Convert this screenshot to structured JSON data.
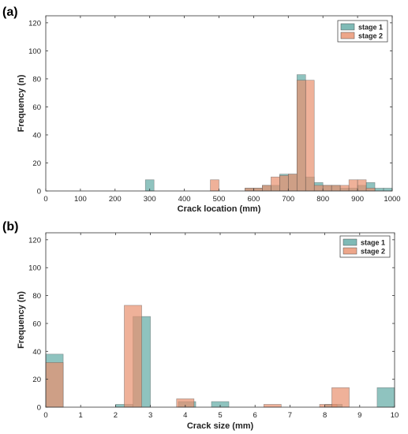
{
  "colors": {
    "stage1": "#5fa9a4",
    "stage2": "#e8906d",
    "axis": "#333333"
  },
  "chart_data": [
    {
      "panel_label": "(a)",
      "type": "bar",
      "xlabel": "Crack location (mm)",
      "ylabel": "Frequency (n)",
      "xlim": [
        0,
        1000
      ],
      "ylim": [
        0,
        125
      ],
      "xticks": [
        0,
        100,
        200,
        300,
        400,
        500,
        600,
        700,
        800,
        900,
        1000
      ],
      "yticks": [
        0,
        20,
        40,
        60,
        80,
        100,
        120
      ],
      "legend": "top-right",
      "series": [
        {
          "name": "stage 1",
          "bin_width": 25,
          "bins": [
            {
              "x0": 287.5,
              "v": 8
            },
            {
              "x0": 575,
              "v": 2
            },
            {
              "x0": 600,
              "v": 2
            },
            {
              "x0": 625,
              "v": 4
            },
            {
              "x0": 650,
              "v": 4
            },
            {
              "x0": 675,
              "v": 12
            },
            {
              "x0": 700,
              "v": 12
            },
            {
              "x0": 725,
              "v": 83
            },
            {
              "x0": 750,
              "v": 10
            },
            {
              "x0": 775,
              "v": 6
            },
            {
              "x0": 800,
              "v": 4
            },
            {
              "x0": 825,
              "v": 4
            },
            {
              "x0": 850,
              "v": 2
            },
            {
              "x0": 875,
              "v": 2
            },
            {
              "x0": 900,
              "v": 4
            },
            {
              "x0": 925,
              "v": 6
            },
            {
              "x0": 950,
              "v": 2
            },
            {
              "x0": 975,
              "v": 2
            }
          ]
        },
        {
          "name": "stage 2",
          "bin_width": 25,
          "bins": [
            {
              "x0": 475,
              "v": 8
            },
            {
              "x0": 575,
              "v": 2
            },
            {
              "x0": 600,
              "v": 2
            },
            {
              "x0": 625,
              "v": 4
            },
            {
              "x0": 650,
              "v": 10
            },
            {
              "x0": 675,
              "v": 11
            },
            {
              "x0": 700,
              "v": 12
            },
            {
              "x0": 725,
              "v": 79
            },
            {
              "x0": 750,
              "v": 79
            },
            {
              "x0": 775,
              "v": 4
            },
            {
              "x0": 800,
              "v": 4
            },
            {
              "x0": 825,
              "v": 4
            },
            {
              "x0": 850,
              "v": 4
            },
            {
              "x0": 875,
              "v": 8
            },
            {
              "x0": 900,
              "v": 8
            },
            {
              "x0": 925,
              "v": 2
            }
          ]
        }
      ]
    },
    {
      "panel_label": "(b)",
      "type": "bar",
      "xlabel": "Crack size (mm)",
      "ylabel": "Frequency (n)",
      "xlim": [
        0,
        10
      ],
      "ylim": [
        0,
        125
      ],
      "xticks": [
        0,
        1,
        2,
        3,
        4,
        5,
        6,
        7,
        8,
        9,
        10
      ],
      "yticks": [
        0,
        20,
        40,
        60,
        80,
        100,
        120
      ],
      "legend": "top-right",
      "series": [
        {
          "name": "stage 1",
          "bin_width": 0.5,
          "bins": [
            {
              "x0": 0,
              "v": 38
            },
            {
              "x0": 2,
              "v": 2
            },
            {
              "x0": 2.5,
              "v": 65
            },
            {
              "x0": 3.8,
              "v": 4
            },
            {
              "x0": 4.75,
              "v": 4
            },
            {
              "x0": 8.0,
              "v": 2
            },
            {
              "x0": 9.5,
              "v": 14
            }
          ]
        },
        {
          "name": "stage 2",
          "bin_width": 0.5,
          "bins": [
            {
              "x0": 0,
              "v": 32
            },
            {
              "x0": 2.25,
              "v": 73
            },
            {
              "x0": 3.75,
              "v": 6
            },
            {
              "x0": 6.25,
              "v": 2
            },
            {
              "x0": 7.85,
              "v": 2
            },
            {
              "x0": 8.2,
              "v": 14
            }
          ]
        }
      ]
    }
  ]
}
